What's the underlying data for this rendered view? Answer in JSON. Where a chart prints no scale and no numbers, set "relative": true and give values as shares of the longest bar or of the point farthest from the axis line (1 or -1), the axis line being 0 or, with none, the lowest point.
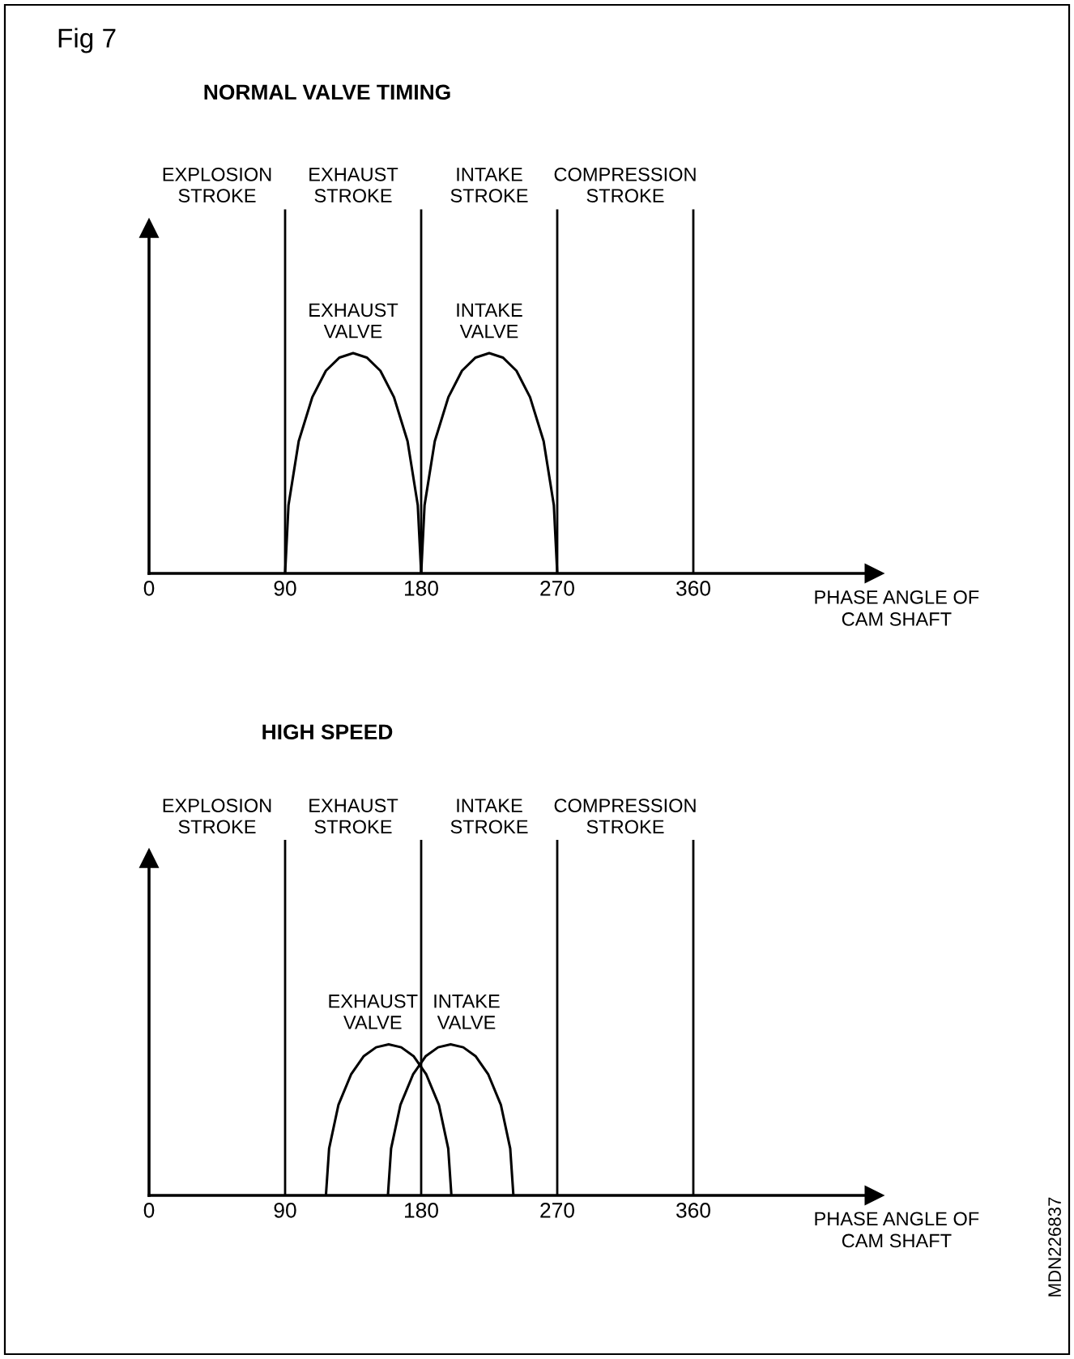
{
  "chart_data": [
    {
      "type": "line",
      "relative": true,
      "title": "NORMAL VALVE TIMING",
      "xlabel": "PHASE ANGLE OF\nCAM SHAFT",
      "xlim": [
        0,
        480
      ],
      "xticks": [
        0,
        90,
        180,
        270,
        360
      ],
      "series": [
        {
          "name": "EXHAUST\nVALVE",
          "color": "#000000",
          "x": [
            90,
            92.25,
            99,
            108,
            117,
            126,
            135,
            144,
            153,
            162,
            171,
            177.75,
            180
          ],
          "values": [
            0,
            0.31,
            0.6,
            0.8,
            0.92,
            0.98,
            1,
            0.98,
            0.92,
            0.8,
            0.6,
            0.31,
            0
          ]
        },
        {
          "name": "INTAKE\nVALVE",
          "color": "#000000",
          "x": [
            180,
            182.25,
            189,
            198,
            207,
            216,
            225,
            234,
            243,
            252,
            261,
            267.75,
            270
          ],
          "values": [
            0,
            0.31,
            0.6,
            0.8,
            0.92,
            0.98,
            1,
            0.98,
            0.92,
            0.8,
            0.6,
            0.31,
            0
          ]
        }
      ],
      "ref_lines": [
        {
          "axis": "x",
          "value": 90,
          "color": "#000000"
        },
        {
          "axis": "x",
          "value": 180,
          "color": "#000000"
        },
        {
          "axis": "x",
          "value": 270,
          "color": "#000000"
        },
        {
          "axis": "x",
          "value": 360,
          "color": "#000000"
        }
      ],
      "annotations": [
        "Fig 7",
        "EXPLOSION\nSTROKE",
        "EXHAUST\nSTROKE",
        "INTAKE\nSTROKE",
        "COMPRESSION\nSTROKE"
      ]
    },
    {
      "type": "line",
      "relative": true,
      "title": "HIGH SPEED",
      "xlabel": "PHASE ANGLE OF\nCAM SHAFT",
      "xlim": [
        0,
        480
      ],
      "xticks": [
        0,
        90,
        180,
        270,
        360
      ],
      "series": [
        {
          "name": "EXHAUST\nVALVE",
          "color": "#000000",
          "x": [
            117,
            119.1,
            125.3,
            133.6,
            141.9,
            150.2,
            158.5,
            166.8,
            175.1,
            183.4,
            191.7,
            197.9,
            200
          ],
          "values": [
            0,
            0.31,
            0.6,
            0.8,
            0.92,
            0.98,
            1,
            0.98,
            0.92,
            0.8,
            0.6,
            0.31,
            0
          ]
        },
        {
          "name": "INTAKE\nVALVE",
          "color": "#000000",
          "x": [
            158,
            160.1,
            166.3,
            174.6,
            182.9,
            191.2,
            199.5,
            207.8,
            216.1,
            224.4,
            232.7,
            238.9,
            241
          ],
          "values": [
            0,
            0.31,
            0.6,
            0.8,
            0.92,
            0.98,
            1,
            0.98,
            0.92,
            0.8,
            0.6,
            0.31,
            0
          ]
        }
      ],
      "ref_lines": [
        {
          "axis": "x",
          "value": 90,
          "color": "#000000"
        },
        {
          "axis": "x",
          "value": 180,
          "color": "#000000"
        },
        {
          "axis": "x",
          "value": 270,
          "color": "#000000"
        },
        {
          "axis": "x",
          "value": 360,
          "color": "#000000"
        }
      ],
      "annotations": [
        "MDN226837",
        "EXPLOSION\nSTROKE",
        "EXHAUST\nSTROKE",
        "INTAKE\nSTROKE",
        "COMPRESSION\nSTROKE"
      ]
    }
  ]
}
